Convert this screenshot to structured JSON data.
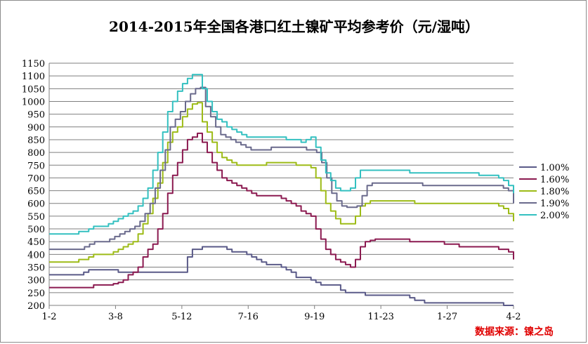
{
  "chart_data": {
    "type": "line",
    "title": "2014-2015年全国各港口红土镍矿平均参考价（元/湿吨）",
    "xlabel": "",
    "ylabel": "",
    "ylim": [
      200,
      1150
    ],
    "yticks": [
      200,
      250,
      300,
      350,
      400,
      450,
      500,
      550,
      600,
      650,
      700,
      750,
      800,
      850,
      900,
      950,
      1000,
      1050,
      1100,
      1150
    ],
    "xticks": [
      "1-2",
      "3-8",
      "5-12",
      "7-16",
      "9-19",
      "11-23",
      "1-27",
      "4-2"
    ],
    "grid": "horizontal",
    "legend_position": "right",
    "source": "数据来源：镍之岛",
    "series": [
      {
        "name": "1.00%",
        "color": "#5a5a88",
        "values": [
          320,
          320,
          320,
          320,
          320,
          320,
          320,
          330,
          340,
          340,
          340,
          340,
          340,
          340,
          330,
          330,
          330,
          330,
          330,
          330,
          330,
          330,
          330,
          330,
          330,
          330,
          330,
          330,
          390,
          420,
          420,
          430,
          430,
          430,
          430,
          430,
          420,
          410,
          410,
          410,
          400,
          390,
          380,
          370,
          360,
          360,
          360,
          350,
          340,
          330,
          310,
          310,
          310,
          300,
          290,
          280,
          280,
          280,
          280,
          260,
          250,
          250,
          250,
          250,
          240,
          240,
          240,
          240,
          240,
          240,
          240,
          240,
          240,
          230,
          220,
          220,
          210,
          210,
          210,
          210,
          210,
          210,
          210,
          210,
          210,
          210,
          210,
          210,
          210,
          210,
          210,
          210,
          200,
          200,
          200
        ]
      },
      {
        "name": "1.60%",
        "color": "#8b1a50",
        "values": [
          270,
          270,
          270,
          270,
          270,
          270,
          270,
          270,
          270,
          280,
          280,
          280,
          280,
          285,
          290,
          300,
          320,
          330,
          350,
          390,
          420,
          440,
          500,
          560,
          640,
          710,
          760,
          810,
          850,
          860,
          875,
          840,
          800,
          760,
          730,
          700,
          690,
          680,
          670,
          660,
          650,
          640,
          630,
          630,
          630,
          630,
          630,
          620,
          610,
          600,
          590,
          570,
          560,
          550,
          500,
          460,
          420,
          400,
          380,
          370,
          360,
          350,
          380,
          430,
          450,
          455,
          460,
          460,
          460,
          460,
          460,
          460,
          460,
          450,
          450,
          450,
          450,
          450,
          450,
          450,
          440,
          440,
          440,
          430,
          430,
          430,
          430,
          430,
          430,
          430,
          430,
          420,
          420,
          410,
          380
        ]
      },
      {
        "name": "1.80%",
        "color": "#9dbb17",
        "values": [
          370,
          370,
          370,
          370,
          370,
          370,
          380,
          380,
          390,
          400,
          400,
          400,
          400,
          410,
          420,
          430,
          440,
          450,
          480,
          520,
          560,
          620,
          680,
          760,
          840,
          880,
          900,
          940,
          970,
          990,
          995,
          920,
          880,
          840,
          800,
          780,
          770,
          760,
          750,
          750,
          750,
          750,
          750,
          750,
          760,
          760,
          760,
          760,
          760,
          760,
          750,
          750,
          750,
          740,
          700,
          650,
          600,
          570,
          540,
          520,
          520,
          520,
          550,
          590,
          600,
          610,
          610,
          610,
          610,
          610,
          610,
          610,
          610,
          610,
          600,
          600,
          600,
          600,
          600,
          600,
          600,
          600,
          600,
          600,
          600,
          600,
          600,
          600,
          600,
          600,
          600,
          590,
          580,
          560,
          530
        ]
      },
      {
        "name": "1.90%",
        "color": "#6a6a8c",
        "values": [
          420,
          420,
          420,
          420,
          420,
          420,
          420,
          430,
          440,
          450,
          450,
          450,
          460,
          470,
          480,
          490,
          500,
          510,
          530,
          560,
          600,
          660,
          730,
          810,
          900,
          930,
          960,
          1000,
          1030,
          1050,
          1055,
          980,
          940,
          900,
          870,
          860,
          850,
          840,
          830,
          820,
          810,
          810,
          810,
          810,
          820,
          820,
          820,
          820,
          820,
          820,
          820,
          810,
          810,
          800,
          760,
          700,
          640,
          610,
          590,
          585,
          585,
          590,
          630,
          670,
          680,
          680,
          680,
          680,
          680,
          680,
          680,
          680,
          680,
          680,
          670,
          670,
          670,
          670,
          670,
          670,
          670,
          670,
          670,
          670,
          670,
          670,
          670,
          670,
          670,
          670,
          660,
          650,
          600
        ]
      },
      {
        "name": "2.00%",
        "color": "#33c0c0",
        "values": [
          480,
          480,
          480,
          480,
          480,
          480,
          490,
          490,
          500,
          510,
          510,
          510,
          520,
          530,
          540,
          550,
          560,
          570,
          590,
          620,
          660,
          730,
          800,
          880,
          960,
          1000,
          1040,
          1070,
          1090,
          1105,
          1105,
          1050,
          1000,
          960,
          930,
          920,
          900,
          890,
          880,
          870,
          860,
          860,
          860,
          860,
          860,
          860,
          860,
          860,
          850,
          850,
          850,
          840,
          850,
          860,
          820,
          770,
          720,
          690,
          660,
          650,
          650,
          660,
          700,
          730,
          730,
          730,
          730,
          730,
          730,
          730,
          730,
          730,
          730,
          720,
          720,
          720,
          720,
          720,
          720,
          720,
          720,
          720,
          720,
          720,
          720,
          720,
          720,
          710,
          710,
          710,
          710,
          700,
          690,
          670,
          640
        ]
      }
    ]
  }
}
